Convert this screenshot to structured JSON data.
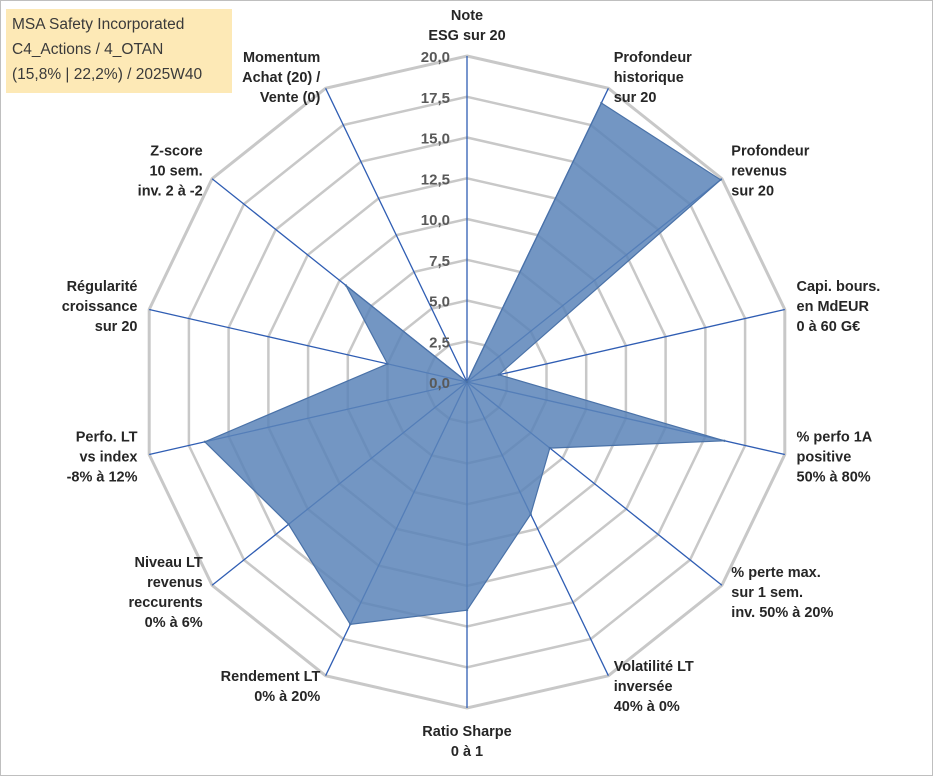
{
  "info_box": {
    "line1": "MSA Safety Incorporated",
    "line2": "C4_Actions / 4_OTAN",
    "line3": "(15,8% | 22,2%) / 2025W40",
    "background": "#fde9b6"
  },
  "colors": {
    "fill": "#5b84b8",
    "outline": "#4a72a8",
    "axis": "#2f5db3",
    "grid": "#c8c8c8"
  },
  "chart_data": {
    "type": "radar",
    "title": "",
    "r_range": [
      0,
      20
    ],
    "ticks": [
      "0,0",
      "2,5",
      "5,0",
      "7,5",
      "10,0",
      "12,5",
      "15,0",
      "17,5",
      "20,0"
    ],
    "categories": [
      "Note ESG sur 20",
      "Profondeur historique sur 20",
      "Profondeur revenus sur 20",
      "Capi. bours. en MdEUR 0 à 60 G€",
      "% perfo 1A positive 50% à 80%",
      "% perte max. sur 1 sem. inv. 50% à 20%",
      "Volatilité LT inversée 40% à 0%",
      "Ratio Sharpe 0 à 1",
      "Rendement LT 0% à 20%",
      "Niveau LT revenus reccurents 0% à 6%",
      "Perfo. LT vs index -8% à 12%",
      "Régularité croissance sur 20",
      "Z-score 10 sem. inv. 2 à -2",
      "Momentum Achat (20) / Vente (0)"
    ],
    "category_lines": [
      [
        "Note",
        "ESG sur 20"
      ],
      [
        "Profondeur",
        "historique",
        "sur 20"
      ],
      [
        "Profondeur",
        "revenus",
        "sur 20"
      ],
      [
        "Capi. bours.",
        "en MdEUR",
        "0 à 60 G€"
      ],
      [
        "% perfo 1A",
        "positive",
        "50% à 80%"
      ],
      [
        "% perte max.",
        "sur 1 sem.",
        "inv. 50% à 20%"
      ],
      [
        "Volatilité LT",
        "inversée",
        "40% à 0%"
      ],
      [
        "Ratio Sharpe",
        "0 à 1"
      ],
      [
        "Rendement LT",
        "0% à 20%"
      ],
      [
        "Niveau LT",
        "revenus",
        "reccurents",
        "0% à 6%"
      ],
      [
        "Perfo. LT",
        "vs index",
        "-8% à 12%"
      ],
      [
        "Régularité",
        "croissance",
        "sur 20"
      ],
      [
        "Z-score",
        "10 sem.",
        "inv. 2 à -2"
      ],
      [
        "Momentum",
        "Achat (20) /",
        "Vente (0)"
      ]
    ],
    "series": [
      {
        "name": "MSA Safety Incorporated",
        "values": [
          0.0,
          19.0,
          19.9,
          2.0,
          16.2,
          6.5,
          9.0,
          14.0,
          16.5,
          14.0,
          16.5,
          5.0,
          9.5,
          0.0
        ]
      }
    ]
  }
}
